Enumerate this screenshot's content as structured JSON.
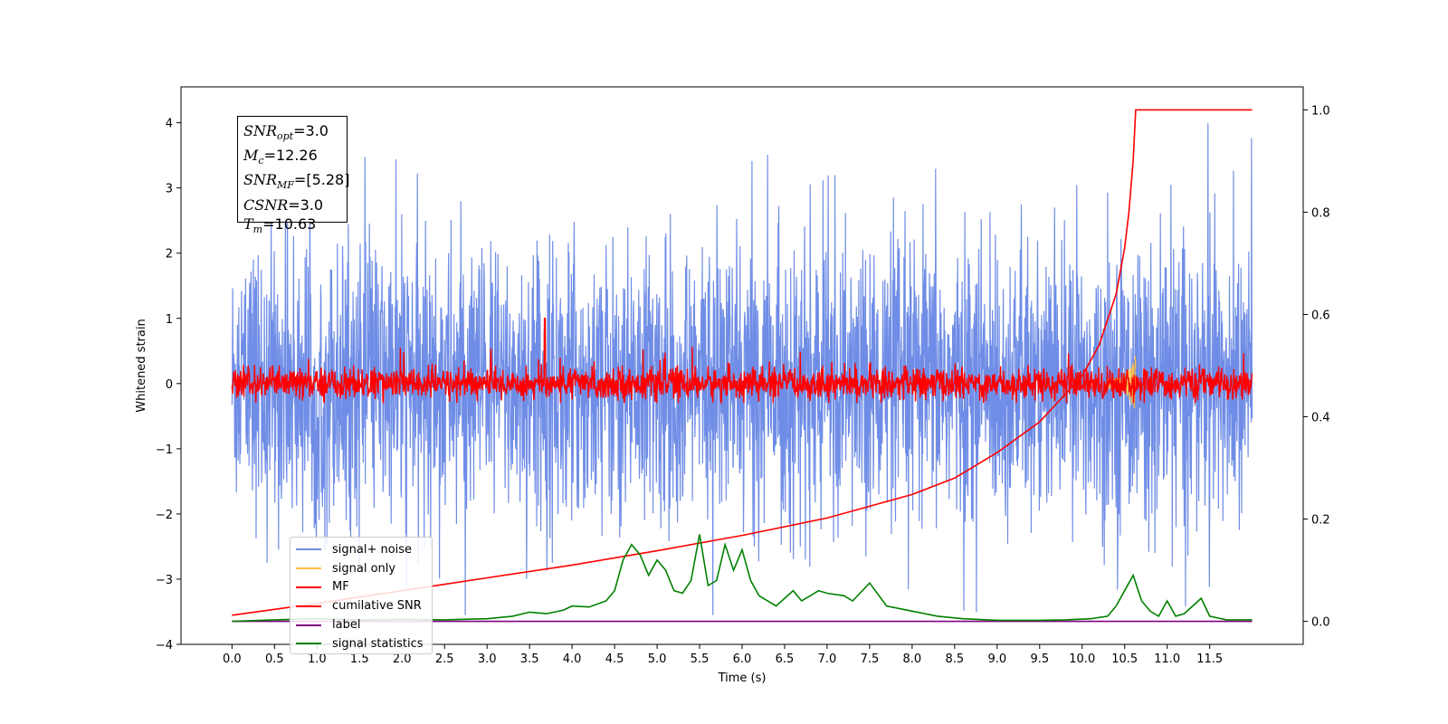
{
  "chart_data": {
    "type": "line",
    "title": "",
    "xlabel": "Time (s)",
    "ylabel": "Whitened strain",
    "y2label": "",
    "xlim": [
      -0.6,
      12.6
    ],
    "ylim": [
      -4.0,
      4.55
    ],
    "y2lim": [
      -0.045,
      1.045
    ],
    "x_ticks": [
      "0.0",
      "0.5",
      "1.0",
      "1.5",
      "2.0",
      "2.5",
      "3.0",
      "3.5",
      "4.0",
      "4.5",
      "5.0",
      "5.5",
      "6.0",
      "6.5",
      "7.0",
      "7.5",
      "8.0",
      "8.5",
      "9.0",
      "9.5",
      "10.0",
      "10.5",
      "11.0",
      "11.5"
    ],
    "y_ticks": [
      "4",
      "3",
      "2",
      "1",
      "0",
      "−1",
      "−2",
      "−3",
      "−4"
    ],
    "y2_ticks": [
      "1.0",
      "0.8",
      "0.6",
      "0.4",
      "0.2",
      "0.0"
    ],
    "grid": false,
    "legend_position": "lower-left",
    "series": [
      {
        "name": "signal+ noise",
        "color": "#6f8de6",
        "axis": "left",
        "description_of_values": "dense whitened noise over x = 0 to 12, mostly within about -2.2 to 2.5 with peaks near 4.2 and dips near -3.5",
        "x_range": [
          0,
          12
        ],
        "y_envelope": [
          -3.55,
          4.2
        ]
      },
      {
        "name": "signal only",
        "color": "#ffbf40",
        "axis": "left",
        "x_range": [
          10.3,
          10.63
        ],
        "y_envelope": [
          -0.4,
          0.5
        ]
      },
      {
        "name": "MF",
        "color": "#ff0000",
        "axis": "left",
        "x_range": [
          0,
          12
        ],
        "y_envelope": [
          -0.3,
          1.0
        ]
      },
      {
        "name": "cumilative SNR",
        "color": "#ff0000",
        "axis": "right",
        "x": [
          0,
          1,
          2,
          3,
          4,
          5,
          6,
          7,
          8,
          8.5,
          9,
          9.5,
          10,
          10.2,
          10.4,
          10.5,
          10.55,
          10.6,
          10.63,
          12.0
        ],
        "y": [
          0.012,
          0.035,
          0.06,
          0.085,
          0.11,
          0.138,
          0.168,
          0.202,
          0.248,
          0.28,
          0.33,
          0.39,
          0.48,
          0.54,
          0.64,
          0.73,
          0.8,
          0.9,
          1.0,
          1.0
        ]
      },
      {
        "name": "label",
        "color": "#800080",
        "axis": "right",
        "x": [
          0,
          12
        ],
        "y": [
          0.0,
          0.0
        ]
      },
      {
        "name": "signal statistics",
        "color": "#008000",
        "axis": "right",
        "x": [
          0,
          0.5,
          1.0,
          1.5,
          2.0,
          2.5,
          3.0,
          3.3,
          3.5,
          3.7,
          3.9,
          4.0,
          4.2,
          4.4,
          4.5,
          4.6,
          4.7,
          4.8,
          4.9,
          5.0,
          5.1,
          5.2,
          5.3,
          5.4,
          5.5,
          5.6,
          5.7,
          5.8,
          5.9,
          6.0,
          6.1,
          6.2,
          6.4,
          6.6,
          6.7,
          6.9,
          7.0,
          7.2,
          7.3,
          7.5,
          7.7,
          8.0,
          8.3,
          8.6,
          9.0,
          9.5,
          9.8,
          10.1,
          10.3,
          10.4,
          10.5,
          10.6,
          10.7,
          10.8,
          10.9,
          11.0,
          11.1,
          11.2,
          11.4,
          11.5,
          11.7,
          12.0
        ],
        "y": [
          0.0,
          0.003,
          0.005,
          0.003,
          0.004,
          0.003,
          0.005,
          0.01,
          0.018,
          0.015,
          0.022,
          0.03,
          0.028,
          0.04,
          0.06,
          0.12,
          0.15,
          0.13,
          0.09,
          0.12,
          0.1,
          0.06,
          0.055,
          0.08,
          0.17,
          0.07,
          0.08,
          0.15,
          0.1,
          0.14,
          0.08,
          0.05,
          0.03,
          0.06,
          0.04,
          0.06,
          0.055,
          0.05,
          0.04,
          0.075,
          0.03,
          0.02,
          0.01,
          0.005,
          0.002,
          0.002,
          0.003,
          0.005,
          0.01,
          0.03,
          0.06,
          0.09,
          0.04,
          0.02,
          0.01,
          0.04,
          0.01,
          0.015,
          0.045,
          0.01,
          0.003,
          0.003
        ]
      }
    ],
    "annotation_box": {
      "snr_opt": "3.0",
      "mc": "12.26",
      "snr_mf": "[5.28]",
      "csnr": "3.0",
      "tm": "10.63"
    }
  },
  "info_labels": {
    "snr_opt": "SNR",
    "snr_opt_sub": "opt",
    "mc": "M",
    "mc_sub": "c",
    "snr_mf": "SNR",
    "snr_mf_sub": "MF",
    "csnr": "CSNR",
    "tm": "T",
    "tm_sub": "m"
  }
}
